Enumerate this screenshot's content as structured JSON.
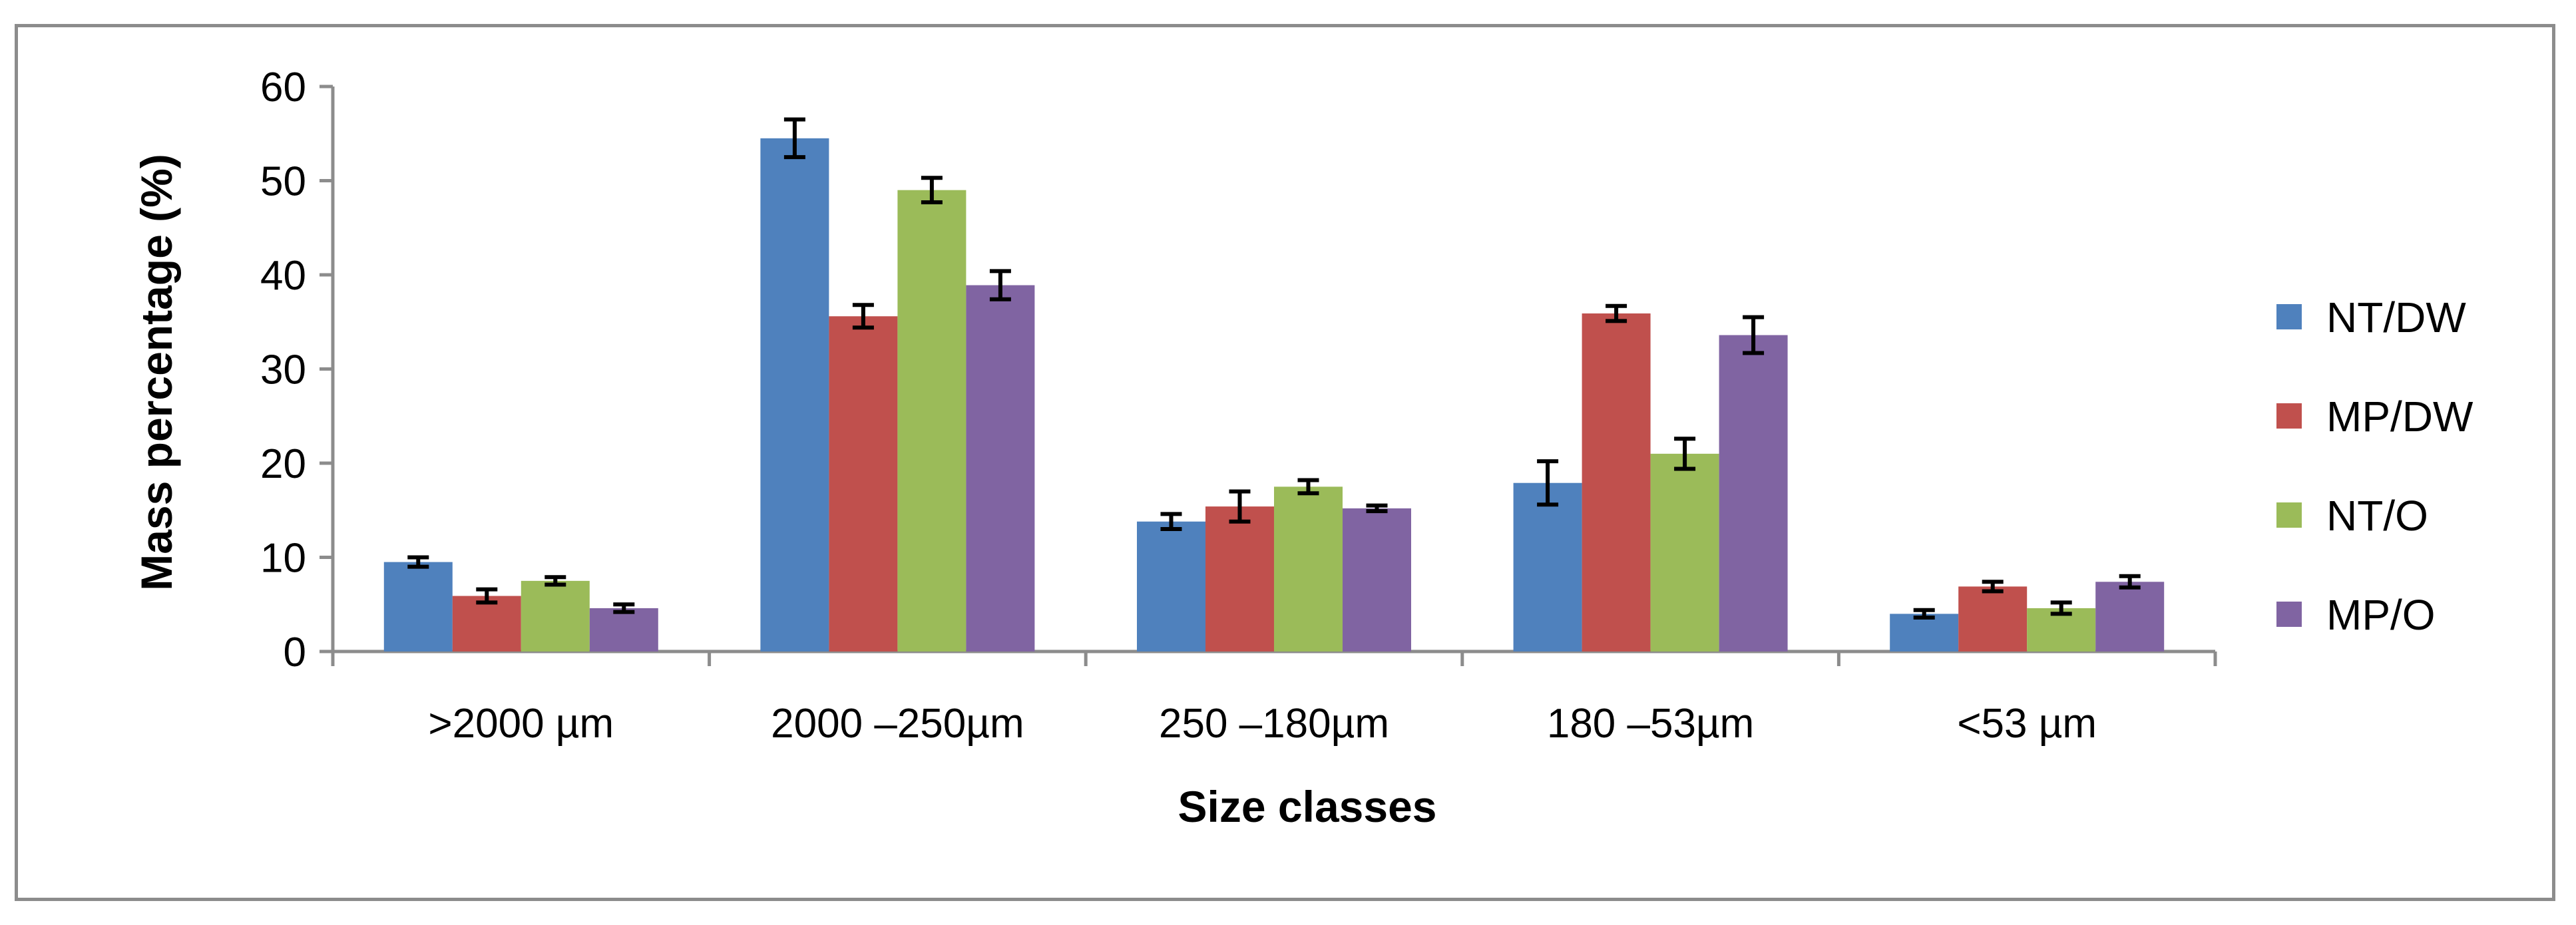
{
  "chart_data": {
    "type": "bar",
    "title": "",
    "xlabel": "Size classes",
    "ylabel": "Mass percentage (%)",
    "ylim": [
      0,
      60
    ],
    "yticks": [
      0,
      10,
      20,
      30,
      40,
      50,
      60
    ],
    "grid": false,
    "legend_position": "right",
    "categories": [
      ">2000 µm",
      "2000 –250µm",
      "250 –180µm",
      "180 –53µm",
      "<53 µm"
    ],
    "series": [
      {
        "name": "NT/DW",
        "color": "#4f81bd",
        "values": [
          9.5,
          54.5,
          13.8,
          17.9,
          4.0
        ],
        "errors": [
          0.5,
          2.0,
          0.8,
          2.3,
          0.4
        ]
      },
      {
        "name": "MP/DW",
        "color": "#c0504d",
        "values": [
          5.9,
          35.6,
          15.4,
          35.9,
          6.9
        ],
        "errors": [
          0.7,
          1.2,
          1.6,
          0.8,
          0.5
        ]
      },
      {
        "name": "NT/O",
        "color": "#9bbb59",
        "values": [
          7.5,
          49.0,
          17.5,
          21.0,
          4.6
        ],
        "errors": [
          0.4,
          1.3,
          0.7,
          1.6,
          0.6
        ]
      },
      {
        "name": "MP/O",
        "color": "#8064a2",
        "values": [
          4.6,
          38.9,
          15.2,
          33.6,
          7.4
        ],
        "errors": [
          0.4,
          1.5,
          0.3,
          1.9,
          0.6
        ]
      }
    ]
  }
}
